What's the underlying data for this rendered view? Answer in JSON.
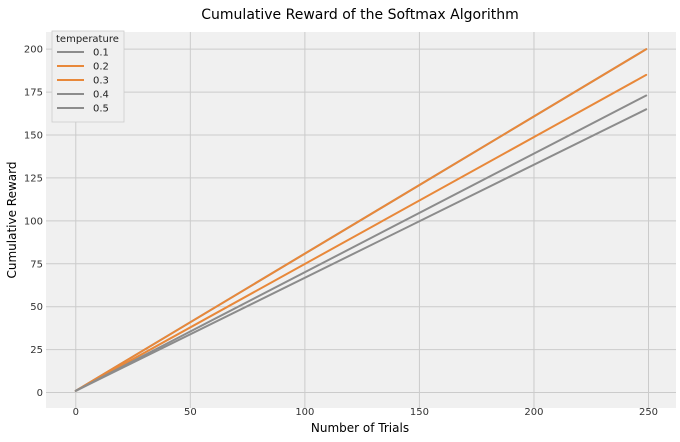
{
  "chart_data": {
    "type": "line",
    "title": "Cumulative Reward of the Softmax Algorithm",
    "xlabel": "Number of Trials",
    "ylabel": "Cumulative Reward",
    "xlim": [
      -13,
      262
    ],
    "ylim": [
      -9,
      210
    ],
    "x_ticks": [
      0,
      50,
      100,
      150,
      200,
      250
    ],
    "y_ticks": [
      0,
      25,
      50,
      75,
      100,
      125,
      150,
      175,
      200
    ],
    "x_tick_labels": [
      "0",
      "50",
      "100",
      "150",
      "200",
      "250"
    ],
    "y_tick_labels": [
      "0",
      "25",
      "50",
      "75",
      "100",
      "125",
      "150",
      "175",
      "200"
    ],
    "grid": true,
    "legend": {
      "title": "temperature",
      "position": "top-left"
    },
    "series": [
      {
        "name": "0.1",
        "color": "#8c8c8c",
        "x": [
          0,
          249
        ],
        "y": [
          1,
          200
        ]
      },
      {
        "name": "0.2",
        "color": "#e8883a",
        "x": [
          0,
          249
        ],
        "y": [
          1,
          200
        ]
      },
      {
        "name": "0.3",
        "color": "#e8883a",
        "x": [
          0,
          249
        ],
        "y": [
          1,
          185
        ]
      },
      {
        "name": "0.4",
        "color": "#8c8c8c",
        "x": [
          0,
          249
        ],
        "y": [
          1,
          173
        ]
      },
      {
        "name": "0.5",
        "color": "#8c8c8c",
        "x": [
          0,
          249
        ],
        "y": [
          1,
          165
        ]
      }
    ]
  }
}
